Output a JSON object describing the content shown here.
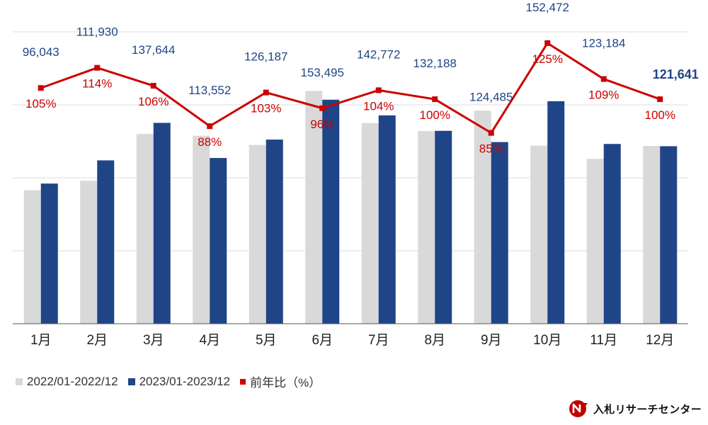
{
  "chart_data": {
    "type": "bar",
    "categories": [
      "1月",
      "2月",
      "3月",
      "4月",
      "5月",
      "6月",
      "7月",
      "8月",
      "9月",
      "10月",
      "11月",
      "12月"
    ],
    "series": [
      {
        "name": "2022/01-2022/12",
        "type": "bar",
        "color": "#d9d9d9",
        "values": [
          91500,
          98000,
          130000,
          128800,
          122500,
          159500,
          137500,
          132000,
          146000,
          122000,
          113000,
          121800
        ]
      },
      {
        "name": "2023/01-2023/12",
        "type": "bar",
        "color": "#1f4587",
        "values": [
          96043,
          111930,
          137644,
          113552,
          126187,
          153495,
          142772,
          132188,
          124485,
          152472,
          123184,
          121641
        ]
      },
      {
        "name": "前年比（%）",
        "type": "line",
        "color": "#cc0000",
        "values": [
          105,
          114,
          106,
          88,
          103,
          96,
          104,
          100,
          85,
          125,
          109,
          100
        ]
      }
    ],
    "bar_value_labels": [
      "96,043",
      "111,930",
      "137,644",
      "113,552",
      "126,187",
      "153,495",
      "142,772",
      "132,188",
      "124,485",
      "152,472",
      "123,184",
      "121,641"
    ],
    "line_value_labels": [
      "105%",
      "114%",
      "106%",
      "88%",
      "103%",
      "96%",
      "104%",
      "100%",
      "85%",
      "125%",
      "109%",
      "100%"
    ],
    "ylim_bars": [
      0,
      200000
    ],
    "ylim_ratio": [
      0,
      130
    ],
    "grid": true,
    "legend_position": "bottom-left"
  },
  "logo": {
    "text": "入札リサーチセンター",
    "brand_color": "#c00000"
  }
}
